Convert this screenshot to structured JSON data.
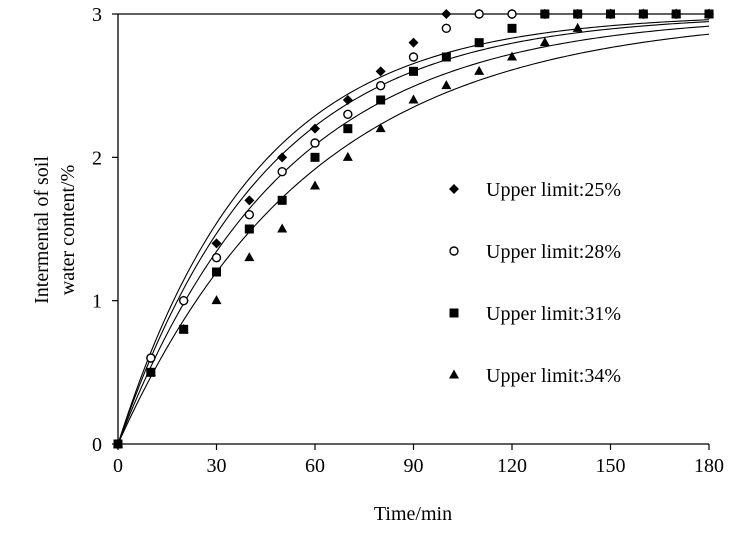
{
  "chart_data": {
    "type": "scatter",
    "title": "",
    "xlabel": "Time/min",
    "ylabel_lines": [
      "Intermental of soil",
      "water content/%"
    ],
    "xlim": [
      0,
      180
    ],
    "ylim": [
      0,
      3
    ],
    "x_ticks": [
      0,
      30,
      60,
      90,
      120,
      150,
      180
    ],
    "y_ticks": [
      0,
      1,
      2,
      3
    ],
    "grid": false,
    "legend_position": "center-right",
    "series": [
      {
        "name": "Upper limit:25%",
        "marker": "diamond",
        "points": [
          [
            0,
            0
          ],
          [
            10,
            0.6
          ],
          [
            20,
            1.0
          ],
          [
            30,
            1.4
          ],
          [
            40,
            1.7
          ],
          [
            50,
            2.0
          ],
          [
            60,
            2.2
          ],
          [
            70,
            2.4
          ],
          [
            80,
            2.6
          ],
          [
            90,
            2.8
          ],
          [
            100,
            3.0
          ],
          [
            110,
            3.0
          ],
          [
            120,
            3.0
          ],
          [
            130,
            3.0
          ],
          [
            140,
            3.0
          ],
          [
            150,
            3.0
          ],
          [
            160,
            3.0
          ],
          [
            170,
            3.0
          ],
          [
            180,
            3.0
          ]
        ]
      },
      {
        "name": "Upper limit:28%",
        "marker": "circle-open",
        "points": [
          [
            0,
            0
          ],
          [
            10,
            0.6
          ],
          [
            20,
            1.0
          ],
          [
            30,
            1.3
          ],
          [
            40,
            1.6
          ],
          [
            50,
            1.9
          ],
          [
            60,
            2.1
          ],
          [
            70,
            2.3
          ],
          [
            80,
            2.5
          ],
          [
            90,
            2.7
          ],
          [
            100,
            2.9
          ],
          [
            110,
            3.0
          ],
          [
            120,
            3.0
          ],
          [
            130,
            3.0
          ],
          [
            140,
            3.0
          ],
          [
            150,
            3.0
          ],
          [
            160,
            3.0
          ],
          [
            170,
            3.0
          ],
          [
            180,
            3.0
          ]
        ]
      },
      {
        "name": "Upper limit:31%",
        "marker": "square",
        "points": [
          [
            0,
            0
          ],
          [
            10,
            0.5
          ],
          [
            20,
            0.8
          ],
          [
            30,
            1.2
          ],
          [
            40,
            1.5
          ],
          [
            50,
            1.7
          ],
          [
            60,
            2.0
          ],
          [
            70,
            2.2
          ],
          [
            80,
            2.4
          ],
          [
            90,
            2.6
          ],
          [
            100,
            2.7
          ],
          [
            110,
            2.8
          ],
          [
            120,
            2.9
          ],
          [
            130,
            3.0
          ],
          [
            140,
            3.0
          ],
          [
            150,
            3.0
          ],
          [
            160,
            3.0
          ],
          [
            170,
            3.0
          ],
          [
            180,
            3.0
          ]
        ]
      },
      {
        "name": "Upper limit:34%",
        "marker": "triangle",
        "points": [
          [
            0,
            0
          ],
          [
            10,
            0.5
          ],
          [
            20,
            0.8
          ],
          [
            30,
            1.0
          ],
          [
            40,
            1.3
          ],
          [
            50,
            1.5
          ],
          [
            60,
            1.8
          ],
          [
            70,
            2.0
          ],
          [
            80,
            2.2
          ],
          [
            90,
            2.4
          ],
          [
            100,
            2.5
          ],
          [
            110,
            2.6
          ],
          [
            120,
            2.7
          ],
          [
            130,
            2.8
          ],
          [
            140,
            2.9
          ],
          [
            150,
            3.0
          ],
          [
            160,
            3.0
          ],
          [
            170,
            3.0
          ],
          [
            180,
            3.0
          ]
        ]
      }
    ],
    "colors": {
      "marker": "#000000",
      "line": "#000000"
    }
  }
}
